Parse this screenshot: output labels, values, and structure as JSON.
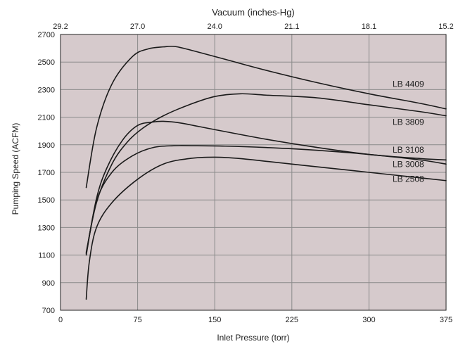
{
  "chart_data": {
    "type": "line",
    "title": "",
    "xlabel": "Inlet Pressure (torr)",
    "ylabel": "Pumping Speed (ACFM)",
    "top_axis_label": "Vacuum (inches-Hg)",
    "xlim": [
      0,
      375
    ],
    "ylim": [
      700,
      2700
    ],
    "x_ticks": [
      "0",
      "75",
      "150",
      "225",
      "300",
      "375"
    ],
    "y_ticks": [
      "700",
      "900",
      "1100",
      "1300",
      "1500",
      "1700",
      "1900",
      "2100",
      "2300",
      "2500",
      "2700"
    ],
    "top_ticks": [
      "29.2",
      "27.0",
      "24.0",
      "21.1",
      "18.1",
      "15.2"
    ],
    "grid": true,
    "colors": {
      "plot_background": "#d6cacc",
      "grid": "#8a8a8a",
      "line": "#1a1a1a"
    },
    "series": [
      {
        "name": "LB 4409",
        "x": [
          25,
          35,
          50,
          70,
          85,
          100,
          112,
          130,
          160,
          200,
          250,
          300,
          350,
          375
        ],
        "y": [
          1590,
          2020,
          2340,
          2540,
          2595,
          2610,
          2612,
          2580,
          2520,
          2440,
          2350,
          2270,
          2200,
          2160
        ]
      },
      {
        "name": "LB 3809",
        "x": [
          25,
          35,
          50,
          65,
          80,
          100,
          125,
          150,
          175,
          200,
          250,
          300,
          350,
          375
        ],
        "y": [
          1120,
          1480,
          1760,
          1920,
          2020,
          2110,
          2190,
          2250,
          2270,
          2260,
          2240,
          2190,
          2140,
          2110
        ]
      },
      {
        "name": "LB 3108",
        "x": [
          25,
          35,
          45,
          60,
          75,
          90,
          100,
          115,
          150,
          200,
          250,
          300,
          350,
          375
        ],
        "y": [
          1110,
          1510,
          1730,
          1930,
          2040,
          2065,
          2070,
          2060,
          2010,
          1940,
          1880,
          1830,
          1800,
          1790
        ]
      },
      {
        "name": "LB 3008",
        "x": [
          25,
          35,
          50,
          70,
          90,
          110,
          130,
          160,
          200,
          250,
          300,
          350,
          375
        ],
        "y": [
          1100,
          1490,
          1700,
          1820,
          1880,
          1893,
          1893,
          1890,
          1880,
          1860,
          1830,
          1790,
          1760
        ]
      },
      {
        "name": "LB 2508",
        "x": [
          25,
          28,
          35,
          50,
          75,
          100,
          125,
          150,
          175,
          200,
          250,
          300,
          350,
          375
        ],
        "y": [
          780,
          1050,
          1300,
          1480,
          1650,
          1760,
          1800,
          1810,
          1800,
          1780,
          1740,
          1700,
          1660,
          1640
        ]
      }
    ],
    "series_labels": [
      "LB 4409",
      "LB 3809",
      "LB 3108",
      "LB 3008",
      "LB 2508"
    ]
  }
}
